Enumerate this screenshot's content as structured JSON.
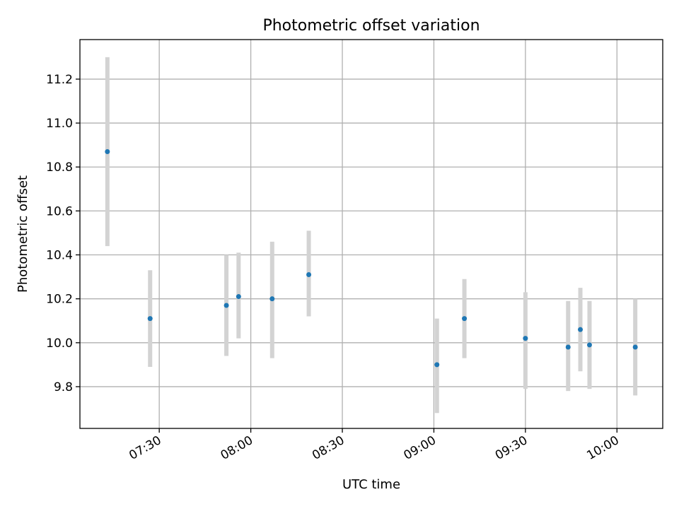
{
  "chart_data": {
    "type": "scatter",
    "title": "Photometric offset variation",
    "xlabel": "UTC time",
    "ylabel": "Photometric offset",
    "grid": true,
    "x_tick_labels": [
      "07:30",
      "08:00",
      "08:30",
      "09:00",
      "09:30",
      "10:00"
    ],
    "y_tick_labels": [
      "9.8",
      "10.0",
      "10.2",
      "10.4",
      "10.6",
      "10.8",
      "11.0",
      "11.2"
    ],
    "xlim": [
      "07:04",
      "10:15"
    ],
    "ylim": [
      9.61,
      11.38
    ],
    "colors": {
      "point": "#1f77b4",
      "errorbar": "#d3d3d3"
    },
    "points": [
      {
        "x": "07:13",
        "y": 10.87,
        "yerr_low": 10.44,
        "yerr_high": 11.3
      },
      {
        "x": "07:27",
        "y": 10.11,
        "yerr_low": 9.89,
        "yerr_high": 10.33
      },
      {
        "x": "07:52",
        "y": 10.17,
        "yerr_low": 9.94,
        "yerr_high": 10.4
      },
      {
        "x": "07:56",
        "y": 10.21,
        "yerr_low": 10.02,
        "yerr_high": 10.41
      },
      {
        "x": "08:07",
        "y": 10.2,
        "yerr_low": 9.93,
        "yerr_high": 10.46
      },
      {
        "x": "08:19",
        "y": 10.31,
        "yerr_low": 10.12,
        "yerr_high": 10.51
      },
      {
        "x": "09:01",
        "y": 9.9,
        "yerr_low": 9.68,
        "yerr_high": 10.11
      },
      {
        "x": "09:10",
        "y": 10.11,
        "yerr_low": 9.93,
        "yerr_high": 10.29
      },
      {
        "x": "09:30",
        "y": 10.02,
        "yerr_low": 9.79,
        "yerr_high": 10.23
      },
      {
        "x": "09:44",
        "y": 9.98,
        "yerr_low": 9.78,
        "yerr_high": 10.19
      },
      {
        "x": "09:48",
        "y": 10.06,
        "yerr_low": 9.87,
        "yerr_high": 10.25
      },
      {
        "x": "09:51",
        "y": 9.99,
        "yerr_low": 9.79,
        "yerr_high": 10.19
      },
      {
        "x": "10:06",
        "y": 9.98,
        "yerr_low": 9.76,
        "yerr_high": 10.2
      }
    ]
  }
}
